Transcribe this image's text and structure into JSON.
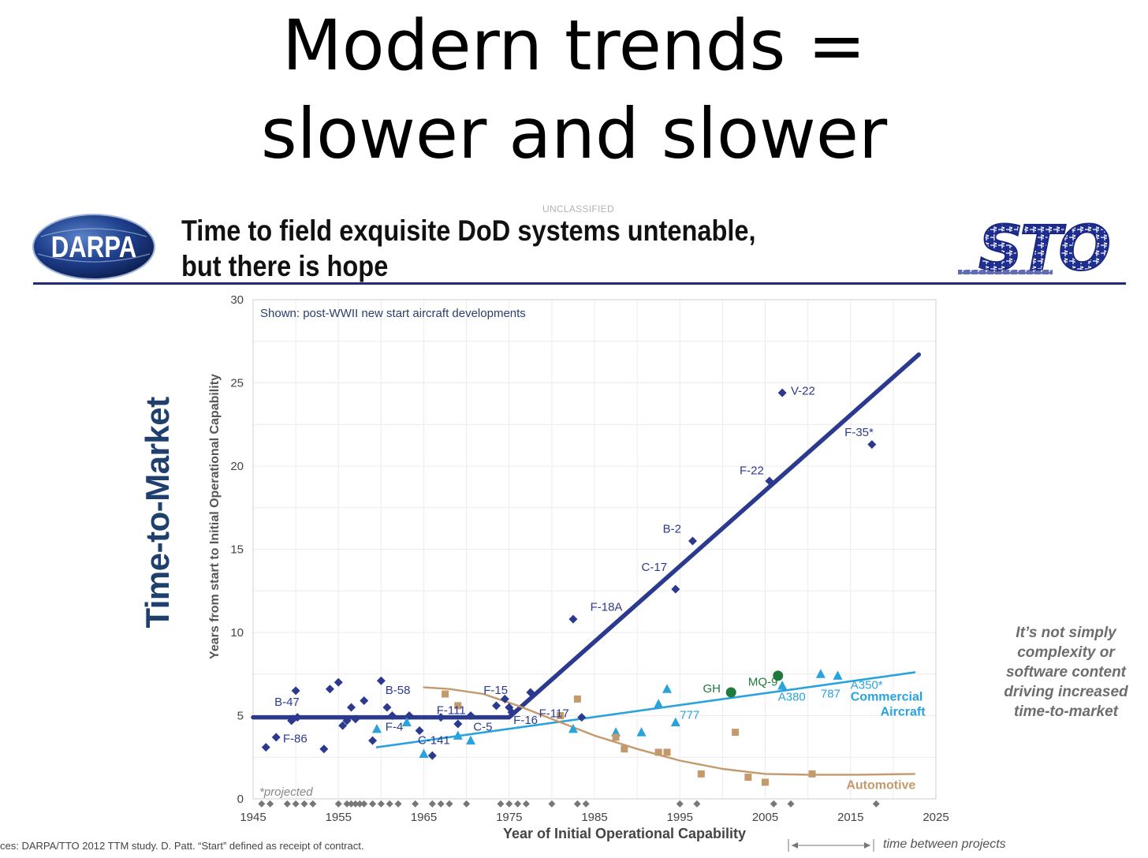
{
  "slide": {
    "title_line1": "Modern trends =",
    "title_line2": "slower and slower",
    "side_label": "Time-to-Market",
    "note": "It’s not simply complexity or software content driving increased time-to-market",
    "source": "ces: DARPA/TTO 2012 TTM study.  D. Patt. “Start” defined as receipt of contract.",
    "between_label": "time between projects"
  },
  "header": {
    "classification": "UNCLASSIFIED",
    "line1": "Time to field exquisite DoD systems untenable,",
    "line2": "but there is hope",
    "darpa_logo_text": "DARPA",
    "sto_logo_text": "STO"
  },
  "colors": {
    "military": "#2b3a8f",
    "commercial": "#29a3dc",
    "automotive": "#c49a6c",
    "gh": "#1e7a3c",
    "projected": "#777777"
  },
  "chart_data": {
    "type": "scatter",
    "title": "Shown: post-WWII new start aircraft developments",
    "xlabel": "Year of Initial Operational Capability",
    "ylabel": "Years from start to Initial Operational Capability",
    "xlim": [
      1945,
      2025
    ],
    "ylim": [
      0,
      30
    ],
    "xticks": [
      1945,
      1955,
      1965,
      1975,
      1985,
      1995,
      2005,
      2015,
      2025
    ],
    "yticks": [
      0,
      5,
      10,
      15,
      20,
      25,
      30
    ],
    "grid": true,
    "annotation": "*projected",
    "series": [
      {
        "name": "Military",
        "marker": "diamond",
        "points": [
          [
            1946.5,
            3.1
          ],
          [
            1947.7,
            3.7
          ],
          [
            1949.5,
            4.7
          ],
          [
            1949.7,
            4.8
          ],
          [
            1950,
            6.5
          ],
          [
            1950.2,
            4.9
          ],
          [
            1953.3,
            3
          ],
          [
            1954,
            6.6
          ],
          [
            1955,
            7
          ],
          [
            1955.5,
            4.4
          ],
          [
            1956,
            4.7
          ],
          [
            1956.5,
            5.5
          ],
          [
            1957,
            4.8
          ],
          [
            1958,
            5.9
          ],
          [
            1959,
            3.5
          ],
          [
            1960,
            7.1
          ],
          [
            1960.7,
            5.5
          ],
          [
            1961.3,
            5
          ],
          [
            1963.3,
            5
          ],
          [
            1964.5,
            4.1
          ],
          [
            1966,
            2.6
          ],
          [
            1967,
            4.9
          ],
          [
            1969,
            4.5
          ],
          [
            1970.5,
            5
          ],
          [
            1973.5,
            5.6
          ],
          [
            1974.5,
            6
          ],
          [
            1975,
            5.5
          ],
          [
            1975.3,
            5.2
          ],
          [
            1977.5,
            6.4
          ],
          [
            1982.5,
            10.8
          ],
          [
            1983.5,
            4.9
          ],
          [
            1994.5,
            12.6
          ],
          [
            1996.5,
            15.5
          ],
          [
            2005.5,
            19.1
          ],
          [
            2007,
            24.4
          ],
          [
            2017.5,
            21.3
          ]
        ]
      },
      {
        "name": "Commercial Aircraft",
        "marker": "triangle",
        "points": [
          [
            1959.5,
            4.2
          ],
          [
            1963,
            4.6
          ],
          [
            1965,
            2.7
          ],
          [
            1969,
            3.8
          ],
          [
            1970.5,
            3.5
          ],
          [
            1982.5,
            4.2
          ],
          [
            1987.5,
            4
          ],
          [
            1990.5,
            4
          ],
          [
            1992.5,
            5.7
          ],
          [
            1993.5,
            6.6
          ],
          [
            1994.5,
            4.6
          ],
          [
            2007,
            6.8
          ],
          [
            2011.5,
            7.5
          ],
          [
            2013.5,
            7.4
          ]
        ]
      },
      {
        "name": "Automotive",
        "marker": "square",
        "points": [
          [
            1967.5,
            6.3
          ],
          [
            1969,
            5.6
          ],
          [
            1981,
            5
          ],
          [
            1983,
            6
          ],
          [
            1987.5,
            3.7
          ],
          [
            1988.5,
            3
          ],
          [
            1992.5,
            2.8
          ],
          [
            1993.5,
            2.8
          ],
          [
            1997.5,
            1.5
          ],
          [
            2001.5,
            4
          ],
          [
            2003,
            1.3
          ],
          [
            2005,
            1
          ],
          [
            2010.5,
            1.5
          ]
        ]
      },
      {
        "name": "GH / MQ-9",
        "marker": "circle",
        "points": [
          [
            2001,
            6.4
          ],
          [
            2006.5,
            7.4
          ]
        ]
      }
    ],
    "trends": [
      {
        "name": "Military trend",
        "points": [
          [
            1945,
            4.9
          ],
          [
            1975,
            4.9
          ],
          [
            2023,
            26.7
          ]
        ]
      },
      {
        "name": "Commercial trend",
        "points": [
          [
            1959.5,
            3.1
          ],
          [
            2022.5,
            7.6
          ]
        ]
      },
      {
        "name": "Automotive trend",
        "points": [
          [
            1965,
            6.7
          ],
          [
            1968,
            6.6
          ],
          [
            1972,
            6.3
          ],
          [
            1976,
            5.6
          ],
          [
            1980,
            4.8
          ],
          [
            1985,
            3.8
          ],
          [
            1990,
            3
          ],
          [
            1995,
            2.3
          ],
          [
            2000,
            1.8
          ],
          [
            2005,
            1.5
          ],
          [
            2010,
            1.45
          ],
          [
            2016,
            1.45
          ],
          [
            2022.5,
            1.5
          ]
        ]
      }
    ],
    "projected_years": [
      1946,
      1947,
      1949,
      1950,
      1951,
      1952,
      1955,
      1956,
      1956.5,
      1957,
      1957.5,
      1958,
      1959,
      1960,
      1961,
      1962,
      1964,
      1966,
      1967,
      1968,
      1970,
      1974,
      1975,
      1976,
      1977,
      1980,
      1983,
      1984,
      1995,
      1997,
      2006,
      2008,
      2018
    ],
    "labels": [
      {
        "text": "B-47",
        "x": 1947.5,
        "y": 5.6,
        "series": "military"
      },
      {
        "text": "F-86",
        "x": 1948.5,
        "y": 3.4,
        "series": "military"
      },
      {
        "text": "B-58",
        "x": 1960.5,
        "y": 6.3,
        "series": "military"
      },
      {
        "text": "F-4",
        "x": 1960.5,
        "y": 4.1,
        "series": "military"
      },
      {
        "text": "F-111",
        "x": 1966.5,
        "y": 5.1,
        "series": "military"
      },
      {
        "text": "C-141",
        "x": 1964.3,
        "y": 3.3,
        "series": "military"
      },
      {
        "text": "C-5",
        "x": 1970.8,
        "y": 4.1,
        "series": "military"
      },
      {
        "text": "F-15",
        "x": 1972,
        "y": 6.3,
        "series": "military"
      },
      {
        "text": "F-16",
        "x": 1975.5,
        "y": 4.5,
        "series": "military"
      },
      {
        "text": "F-117",
        "x": 1978.5,
        "y": 4.9,
        "series": "military"
      },
      {
        "text": "F-18A",
        "x": 1984.5,
        "y": 11.3,
        "series": "military"
      },
      {
        "text": "C-17",
        "x": 1990.5,
        "y": 13.7,
        "series": "military"
      },
      {
        "text": "B-2",
        "x": 1993,
        "y": 16,
        "series": "military"
      },
      {
        "text": "F-22",
        "x": 2002,
        "y": 19.5,
        "series": "military"
      },
      {
        "text": "V-22",
        "x": 2008,
        "y": 24.3,
        "series": "military"
      },
      {
        "text": "F-35*",
        "x": 2014.3,
        "y": 21.8,
        "series": "military"
      },
      {
        "text": "GH",
        "x": 1997.7,
        "y": 6.4,
        "series": "gh"
      },
      {
        "text": "MQ-9",
        "x": 2003,
        "y": 6.8,
        "series": "gh"
      },
      {
        "text": "A380",
        "x": 2006.5,
        "y": 5.9,
        "series": "commercial"
      },
      {
        "text": "787",
        "x": 2011.5,
        "y": 6.1,
        "series": "commercial"
      },
      {
        "text": "A350*",
        "x": 2015,
        "y": 6.6,
        "series": "commercial"
      },
      {
        "text": "777",
        "x": 1995,
        "y": 4.8,
        "series": "commercial"
      },
      {
        "text": "Commercial",
        "x": 2015,
        "y": 5.9,
        "series": "commercial",
        "bold": true
      },
      {
        "text": "Aircraft",
        "x": 2018.5,
        "y": 5,
        "series": "commercial",
        "bold": true
      },
      {
        "text": "Automotive",
        "x": 2014.5,
        "y": 0.6,
        "series": "automotive",
        "bold": true
      }
    ]
  }
}
